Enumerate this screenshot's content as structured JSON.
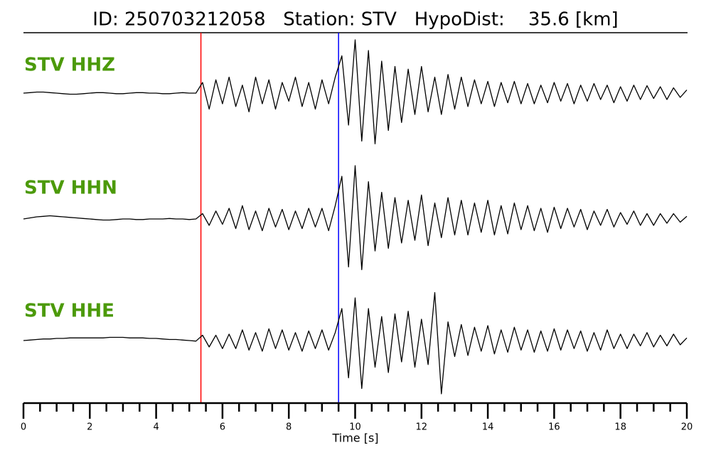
{
  "chart_data": {
    "type": "line",
    "title": "ID: 250703212058   Station: STV   HypoDist:    35.6 [km]",
    "xlabel": "Time [s]",
    "xlim": [
      0,
      20
    ],
    "xticks": [
      0,
      2,
      4,
      6,
      8,
      10,
      12,
      14,
      16,
      18,
      20
    ],
    "xminorticks": [
      0.5,
      1,
      1.5,
      2.5,
      3,
      3.5,
      4.5,
      5,
      5.5,
      6.5,
      7,
      7.5,
      8.5,
      9,
      9.5,
      10.5,
      11,
      11.5,
      12.5,
      13,
      13.5,
      14.5,
      15,
      15.5,
      16.5,
      17,
      17.5,
      18.5,
      19,
      19.5
    ],
    "ylim": [
      -1,
      1
    ],
    "label_color": "#4c9a0a",
    "picks": [
      {
        "x": 5.35,
        "color": "#ff0000"
      },
      {
        "x": 9.5,
        "color": "#0000ff"
      }
    ],
    "x": [
      0,
      0.2,
      0.4,
      0.6,
      0.8,
      1,
      1.2,
      1.4,
      1.6,
      1.8,
      2,
      2.2,
      2.4,
      2.6,
      2.8,
      3,
      3.2,
      3.4,
      3.6,
      3.8,
      4,
      4.2,
      4.4,
      4.6,
      4.8,
      5,
      5.2,
      5.4,
      5.6,
      5.8,
      6,
      6.2,
      6.4,
      6.6,
      6.8,
      7,
      7.2,
      7.4,
      7.6,
      7.8,
      8,
      8.2,
      8.4,
      8.6,
      8.8,
      9,
      9.2,
      9.4,
      9.6,
      9.8,
      10,
      10.2,
      10.4,
      10.6,
      10.8,
      11,
      11.2,
      11.4,
      11.6,
      11.8,
      12,
      12.2,
      12.4,
      12.6,
      12.8,
      13,
      13.2,
      13.4,
      13.6,
      13.8,
      14,
      14.2,
      14.4,
      14.6,
      14.8,
      15,
      15.2,
      15.4,
      15.6,
      15.8,
      16,
      16.2,
      16.4,
      16.6,
      16.8,
      17,
      17.2,
      17.4,
      17.6,
      17.8,
      18,
      18.2,
      18.4,
      18.6,
      18.8,
      19,
      19.2,
      19.4,
      19.6,
      19.8,
      20
    ],
    "series": [
      {
        "name": "STV HHZ",
        "color": "#000000",
        "values": [
          0,
          0.01,
          0.02,
          0.02,
          0.01,
          0,
          -0.01,
          -0.02,
          -0.02,
          -0.01,
          0,
          0.01,
          0.01,
          0,
          -0.01,
          -0.01,
          0,
          0.01,
          0.01,
          0,
          0,
          -0.01,
          -0.01,
          0,
          0.01,
          0,
          0,
          0.2,
          -0.3,
          0.25,
          -0.2,
          0.3,
          -0.25,
          0.15,
          -0.35,
          0.3,
          -0.2,
          0.25,
          -0.3,
          0.2,
          -0.15,
          0.3,
          -0.25,
          0.2,
          -0.3,
          0.25,
          -0.2,
          0.3,
          0.7,
          -0.6,
          1.0,
          -0.9,
          0.8,
          -0.95,
          0.6,
          -0.7,
          0.5,
          -0.55,
          0.45,
          -0.4,
          0.5,
          -0.35,
          0.3,
          -0.4,
          0.35,
          -0.3,
          0.3,
          -0.25,
          0.25,
          -0.2,
          0.22,
          -0.25,
          0.2,
          -0.18,
          0.22,
          -0.2,
          0.18,
          -0.2,
          0.15,
          -0.18,
          0.2,
          -0.15,
          0.18,
          -0.2,
          0.15,
          -0.15,
          0.18,
          -0.12,
          0.15,
          -0.18,
          0.12,
          -0.15,
          0.15,
          -0.12,
          0.14,
          -0.1,
          0.12,
          -0.12,
          0.1,
          -0.08,
          0.06
        ]
      },
      {
        "name": "STV HHN",
        "color": "#000000",
        "values": [
          0,
          0.02,
          0.04,
          0.05,
          0.06,
          0.05,
          0.04,
          0.03,
          0.02,
          0.01,
          0,
          -0.01,
          -0.02,
          -0.02,
          -0.01,
          0,
          0,
          -0.01,
          -0.01,
          0,
          0,
          0,
          0.01,
          0,
          0,
          -0.01,
          0,
          0.1,
          -0.12,
          0.15,
          -0.1,
          0.2,
          -0.18,
          0.25,
          -0.2,
          0.15,
          -0.22,
          0.2,
          -0.15,
          0.18,
          -0.2,
          0.15,
          -0.18,
          0.2,
          -0.15,
          0.2,
          -0.22,
          0.25,
          0.8,
          -0.9,
          1.0,
          -0.95,
          0.7,
          -0.6,
          0.5,
          -0.55,
          0.4,
          -0.45,
          0.35,
          -0.4,
          0.45,
          -0.5,
          0.3,
          -0.35,
          0.4,
          -0.3,
          0.35,
          -0.3,
          0.3,
          -0.25,
          0.35,
          -0.3,
          0.25,
          -0.28,
          0.3,
          -0.2,
          0.25,
          -0.22,
          0.2,
          -0.25,
          0.22,
          -0.18,
          0.2,
          -0.15,
          0.18,
          -0.2,
          0.15,
          -0.12,
          0.18,
          -0.15,
          0.12,
          -0.1,
          0.15,
          -0.12,
          0.1,
          -0.12,
          0.1,
          -0.08,
          0.1,
          -0.06,
          0.05
        ]
      },
      {
        "name": "STV HHE",
        "color": "#000000",
        "values": [
          0,
          0.01,
          0.02,
          0.03,
          0.03,
          0.04,
          0.04,
          0.05,
          0.05,
          0.05,
          0.05,
          0.05,
          0.05,
          0.06,
          0.06,
          0.06,
          0.05,
          0.05,
          0.05,
          0.04,
          0.04,
          0.03,
          0.02,
          0.02,
          0.01,
          0,
          -0.01,
          0.1,
          -0.12,
          0.1,
          -0.15,
          0.12,
          -0.15,
          0.2,
          -0.18,
          0.15,
          -0.2,
          0.22,
          -0.15,
          0.2,
          -0.18,
          0.15,
          -0.2,
          0.18,
          -0.15,
          0.2,
          -0.18,
          0.15,
          0.6,
          -0.7,
          0.8,
          -0.9,
          0.6,
          -0.5,
          0.45,
          -0.6,
          0.5,
          -0.4,
          0.55,
          -0.5,
          0.4,
          -0.45,
          0.9,
          -1.0,
          0.35,
          -0.3,
          0.3,
          -0.28,
          0.25,
          -0.2,
          0.28,
          -0.25,
          0.2,
          -0.22,
          0.25,
          -0.18,
          0.2,
          -0.22,
          0.18,
          -0.2,
          0.22,
          -0.18,
          0.2,
          -0.15,
          0.18,
          -0.2,
          0.15,
          -0.18,
          0.2,
          -0.15,
          0.12,
          -0.15,
          0.12,
          -0.1,
          0.15,
          -0.12,
          0.1,
          -0.1,
          0.12,
          -0.08,
          0.05
        ]
      }
    ]
  }
}
